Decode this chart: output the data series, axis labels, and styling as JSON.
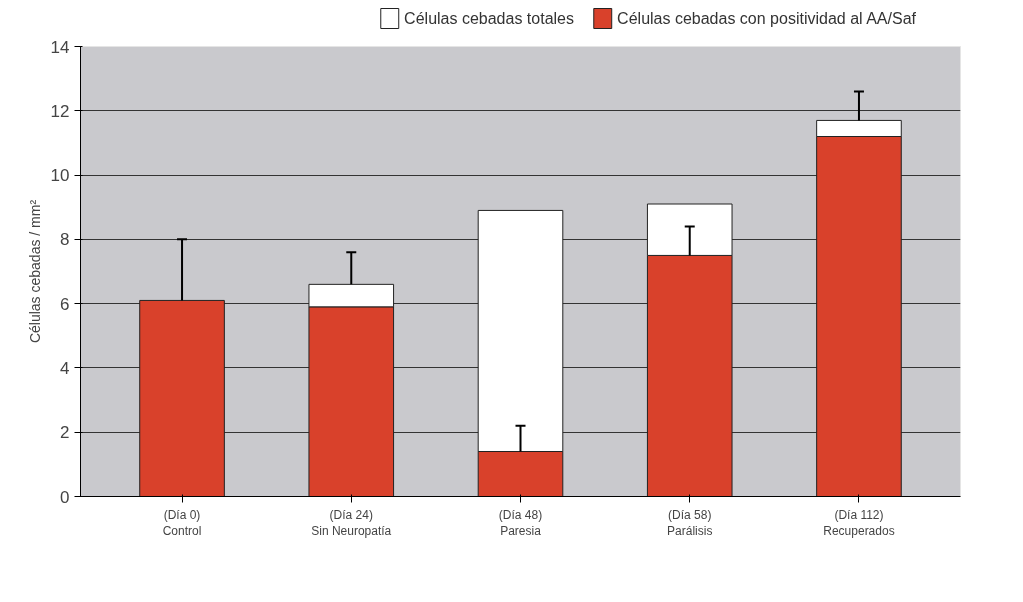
{
  "chart_data": {
    "type": "bar",
    "stacked": true,
    "ylabel": "Células cebadas / mm²",
    "categories": [
      "(Día 0)\nControl",
      "(Día 24)\nSin Neuropatía",
      "(Día 48)\nParesia",
      "(Día 58)\nParálisis",
      "(Día 112)\nRecuperados"
    ],
    "series": [
      {
        "name": "Células cebadas con positividad al AA/Saf",
        "color": "#d9412b",
        "values": [
          6.1,
          5.9,
          1.4,
          7.5,
          11.2
        ],
        "errors": [
          [
            6.1,
            8.0
          ],
          null,
          [
            1.4,
            2.2
          ],
          [
            7.5,
            8.4
          ],
          null
        ]
      },
      {
        "name": "Células cebadas totales",
        "color": "#ffffff",
        "values": [
          null,
          0.7,
          7.5,
          1.6,
          0.5
        ],
        "errors": [
          null,
          [
            6.6,
            7.6
          ],
          null,
          null,
          [
            11.7,
            12.6
          ]
        ]
      }
    ],
    "ylim": [
      0,
      14
    ],
    "yticks": [
      0,
      2,
      4,
      6,
      8,
      10,
      12,
      14
    ],
    "grid": "y",
    "legend": "top"
  }
}
